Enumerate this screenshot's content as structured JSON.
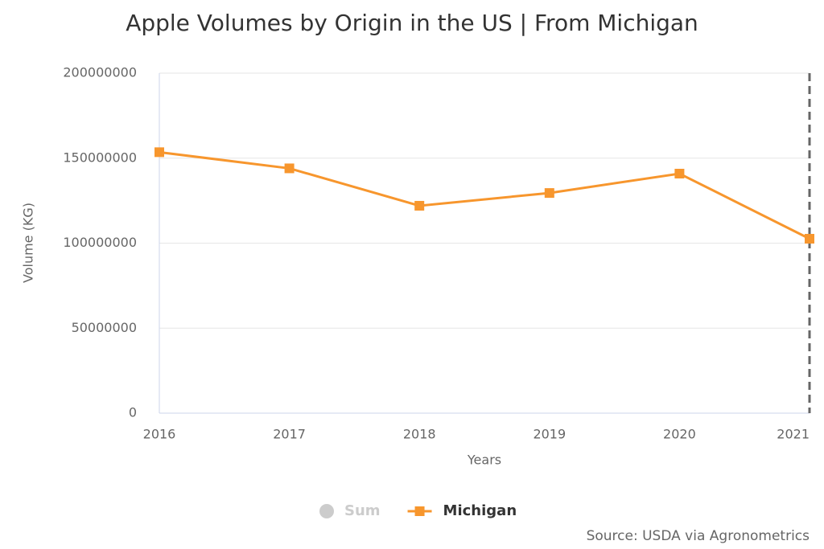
{
  "chart_data": {
    "type": "line",
    "title": "Apple Volumes by Origin in the US | From Michigan",
    "x_label": "Years",
    "y_label": "Volume (KG)",
    "source": "Source: USDA via Agronometrics",
    "categories": [
      "2016",
      "2017",
      "2018",
      "2019",
      "2020",
      "2021"
    ],
    "series": [
      {
        "name": "Sum",
        "color": "#cccccc",
        "visible": false
      },
      {
        "name": "Michigan",
        "color": "#f7962d",
        "values": [
          153500000,
          144000000,
          122000000,
          129500000,
          140900000,
          102600000
        ]
      }
    ],
    "ylim": [
      0,
      200000000
    ],
    "yticks": [
      0,
      50000000,
      100000000,
      150000000,
      200000000
    ],
    "grid": true
  }
}
